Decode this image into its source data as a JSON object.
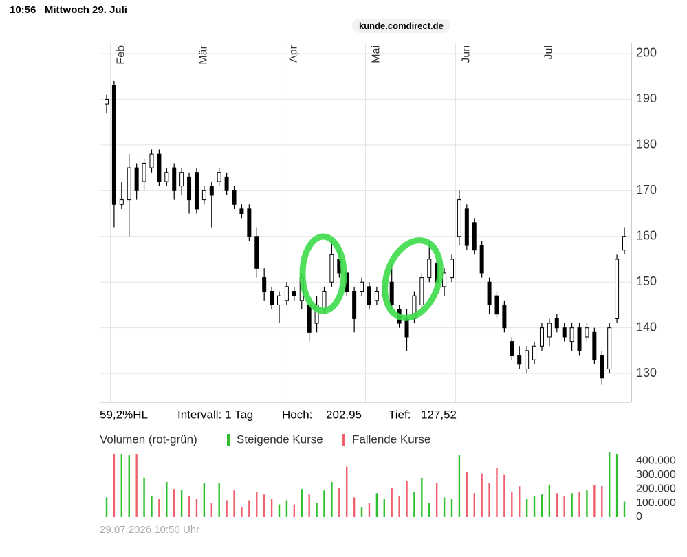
{
  "status": {
    "time": "10:56",
    "date": "Mittwoch 29. Juli"
  },
  "url": "kunde.comdirect.de",
  "stats": {
    "range_hl": "59,2%HL",
    "interval": "Intervall: 1 Tag",
    "high_label": "Hoch:",
    "high": "202,95",
    "low_label": "Tief:",
    "low": "127,52"
  },
  "timestamp": "29.07.2026 10:50 Uhr",
  "chart_data": [
    {
      "type": "candlestick",
      "categories": [
        null,
        "Feb",
        null,
        null,
        null,
        null,
        null,
        null,
        null,
        null,
        null,
        null,
        "Mär",
        null,
        null,
        null,
        null,
        null,
        null,
        null,
        null,
        null,
        null,
        null,
        "Apr",
        null,
        null,
        null,
        null,
        null,
        null,
        null,
        null,
        null,
        null,
        "Mai",
        null,
        null,
        null,
        null,
        null,
        null,
        null,
        null,
        null,
        null,
        null,
        "Jun",
        null,
        null,
        null,
        null,
        null,
        null,
        null,
        null,
        null,
        null,
        "Jul",
        null,
        null,
        null,
        null,
        null,
        null,
        null,
        null,
        null,
        null,
        null
      ],
      "open": [
        189,
        193,
        167,
        168,
        175,
        172,
        175,
        178,
        172,
        175,
        171,
        173,
        174,
        168,
        171,
        172,
        173,
        170,
        166,
        166,
        160,
        151,
        148,
        145,
        146,
        148,
        146,
        145,
        141,
        144,
        150,
        155,
        152,
        148,
        148,
        149,
        146,
        147,
        150,
        144,
        142,
        142,
        145,
        151,
        154,
        149,
        151,
        160,
        166,
        163,
        158,
        150,
        147,
        145,
        137,
        134,
        131,
        133,
        136,
        138,
        142,
        140,
        137,
        140,
        138,
        139,
        134,
        131,
        142,
        157
      ],
      "high": [
        191,
        194,
        172,
        178,
        176,
        177,
        179,
        179,
        175,
        176,
        175,
        174,
        175,
        171,
        172,
        175,
        174,
        171,
        167,
        167,
        162,
        153,
        149,
        148,
        150,
        149,
        152,
        146,
        147,
        149,
        159,
        157,
        153,
        149,
        151,
        150,
        149,
        150,
        154,
        145,
        144,
        148,
        152,
        159,
        155,
        153,
        156,
        170,
        167,
        164,
        159,
        151,
        148,
        146,
        138,
        136,
        136,
        137,
        141,
        142,
        143,
        141,
        141,
        141,
        141,
        140,
        135,
        141,
        156,
        162
      ],
      "low": [
        187,
        162,
        166,
        160,
        168,
        170,
        174,
        171,
        171,
        168,
        169,
        165,
        165,
        167,
        162,
        171,
        169,
        166,
        164,
        159,
        151,
        146,
        144,
        141,
        145,
        146,
        144,
        137,
        139,
        143,
        149,
        151,
        147,
        139,
        147,
        144,
        145,
        146,
        144,
        140,
        135,
        141,
        144,
        150,
        149,
        147,
        150,
        158,
        157,
        156,
        151,
        143,
        142,
        139,
        133,
        131,
        130,
        132,
        135,
        136,
        139,
        137,
        135,
        134,
        137,
        132,
        127.5,
        130,
        141,
        156
      ],
      "close": [
        190,
        167,
        168,
        175,
        170,
        176,
        178,
        172,
        174,
        170,
        174,
        168,
        166,
        170,
        169,
        174,
        170,
        167,
        165,
        160,
        153,
        148,
        145,
        147,
        149,
        147,
        151,
        139,
        145,
        148,
        156,
        152,
        148,
        142,
        150,
        145,
        148,
        149,
        145,
        141,
        138,
        147,
        151,
        155,
        150,
        152,
        155,
        168,
        158,
        157,
        152,
        145,
        143,
        140,
        134,
        132,
        135,
        136,
        140,
        141,
        140,
        138,
        140,
        135,
        140,
        133,
        129,
        140,
        155,
        160
      ],
      "up_color": "#ffffff",
      "down_color": "#000000",
      "ylim": [
        123.7,
        202.4
      ],
      "yticks": [
        130,
        140,
        150,
        160,
        170,
        180,
        190,
        200
      ],
      "grid": true
    },
    {
      "type": "bar",
      "legend_title": "Volumen (rot-grün)",
      "series": [
        {
          "name": "Steigende Kurse",
          "color": "#2cc02c",
          "values": [
            140000,
            null,
            450000,
            440000,
            null,
            280000,
            150000,
            null,
            250000,
            null,
            190000,
            null,
            null,
            240000,
            null,
            240000,
            null,
            null,
            null,
            null,
            null,
            null,
            null,
            90000,
            120000,
            null,
            200000,
            null,
            100000,
            190000,
            250000,
            null,
            null,
            null,
            70000,
            null,
            170000,
            130000,
            null,
            null,
            null,
            180000,
            280000,
            100000,
            null,
            140000,
            130000,
            440000,
            null,
            null,
            null,
            null,
            null,
            null,
            null,
            null,
            130000,
            150000,
            160000,
            230000,
            null,
            null,
            170000,
            null,
            190000,
            null,
            null,
            460000,
            450000,
            110000
          ]
        },
        {
          "name": "Fallende Kurse",
          "color": "#f0606e",
          "values": [
            null,
            450000,
            null,
            null,
            450000,
            null,
            null,
            130000,
            null,
            200000,
            null,
            150000,
            130000,
            null,
            100000,
            null,
            120000,
            190000,
            70000,
            120000,
            180000,
            160000,
            130000,
            null,
            null,
            90000,
            null,
            160000,
            null,
            null,
            null,
            210000,
            360000,
            140000,
            null,
            100000,
            null,
            null,
            210000,
            150000,
            260000,
            null,
            null,
            null,
            240000,
            null,
            null,
            null,
            320000,
            170000,
            310000,
            240000,
            350000,
            300000,
            180000,
            220000,
            null,
            null,
            null,
            null,
            170000,
            150000,
            null,
            180000,
            null,
            230000,
            220000,
            null,
            null,
            null
          ]
        }
      ],
      "ylim": [
        0,
        470000
      ],
      "yticks": [
        0,
        {
          "value": 100000,
          "label": "100.000"
        },
        {
          "value": 200000,
          "label": "200.000"
        },
        {
          "value": 300000,
          "label": "300.000"
        },
        {
          "value": 400000,
          "label": "400.000"
        }
      ]
    }
  ]
}
